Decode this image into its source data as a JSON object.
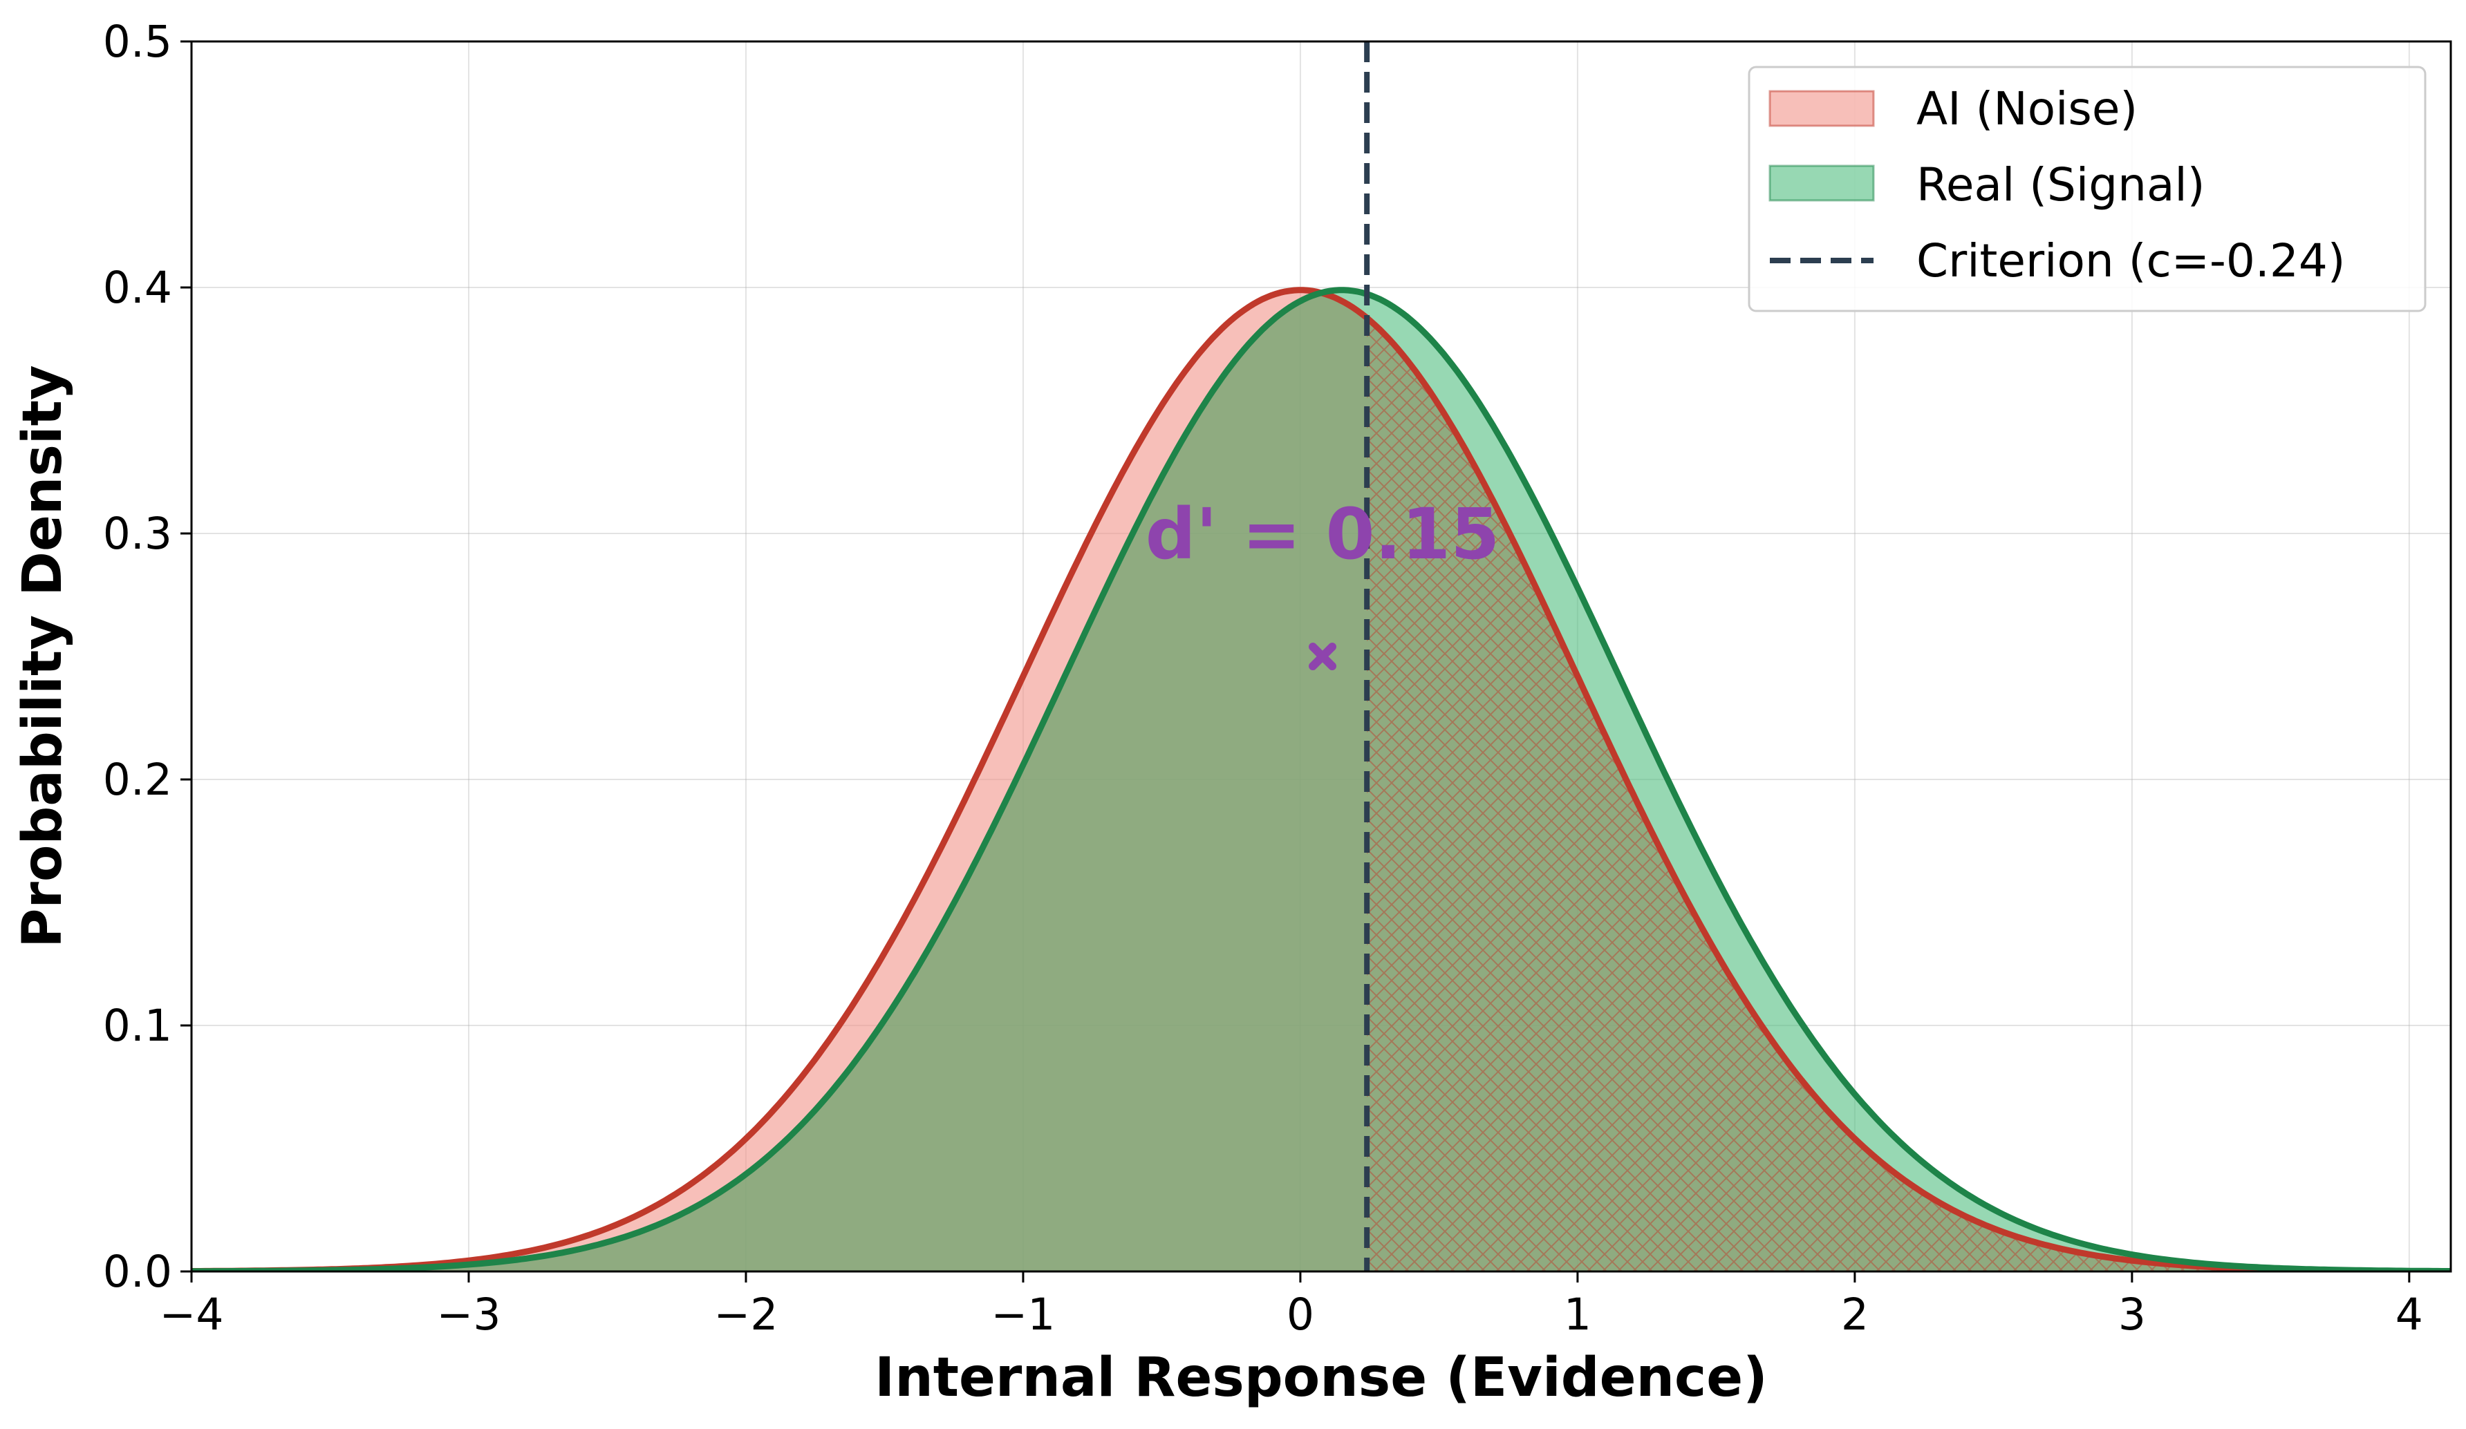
{
  "chart_data": {
    "type": "area",
    "title": "",
    "xlabel": "Internal Response (Evidence)",
    "ylabel": "Probability Density",
    "xlim": [
      -4,
      4.15
    ],
    "ylim": [
      0,
      0.5
    ],
    "x_ticks": [
      -4,
      -3,
      -2,
      -1,
      0,
      1,
      2,
      3,
      4
    ],
    "x_tick_labels": [
      "−4",
      "−3",
      "−2",
      "−1",
      "0",
      "1",
      "2",
      "3",
      "4"
    ],
    "y_ticks": [
      0.0,
      0.1,
      0.2,
      0.3,
      0.4,
      0.5
    ],
    "y_tick_labels": [
      "0.0",
      "0.1",
      "0.2",
      "0.3",
      "0.4",
      "0.5"
    ],
    "grid": true,
    "legend_position": "top-right",
    "series": [
      {
        "name": "AI (Noise)",
        "distribution": "normal",
        "mean": 0.0,
        "sd": 1.0,
        "line_color": "#c0392b",
        "fill_color": "#f1948a"
      },
      {
        "name": "Real (Signal)",
        "distribution": "normal",
        "mean": 0.15,
        "sd": 1.0,
        "line_color": "#1e8449",
        "fill_color": "#52be80"
      }
    ],
    "criterion": {
      "name": "Criterion (c=-0.24)",
      "x": 0.24,
      "color": "#2c3e50",
      "style": "dashed"
    },
    "annotation": {
      "text": "d' = 0.15",
      "x": 0.08,
      "y": 0.3,
      "color": "#8e44ad"
    },
    "marker": {
      "shape": "x",
      "x": 0.08,
      "y": 0.25,
      "color": "#8e44ad"
    }
  }
}
